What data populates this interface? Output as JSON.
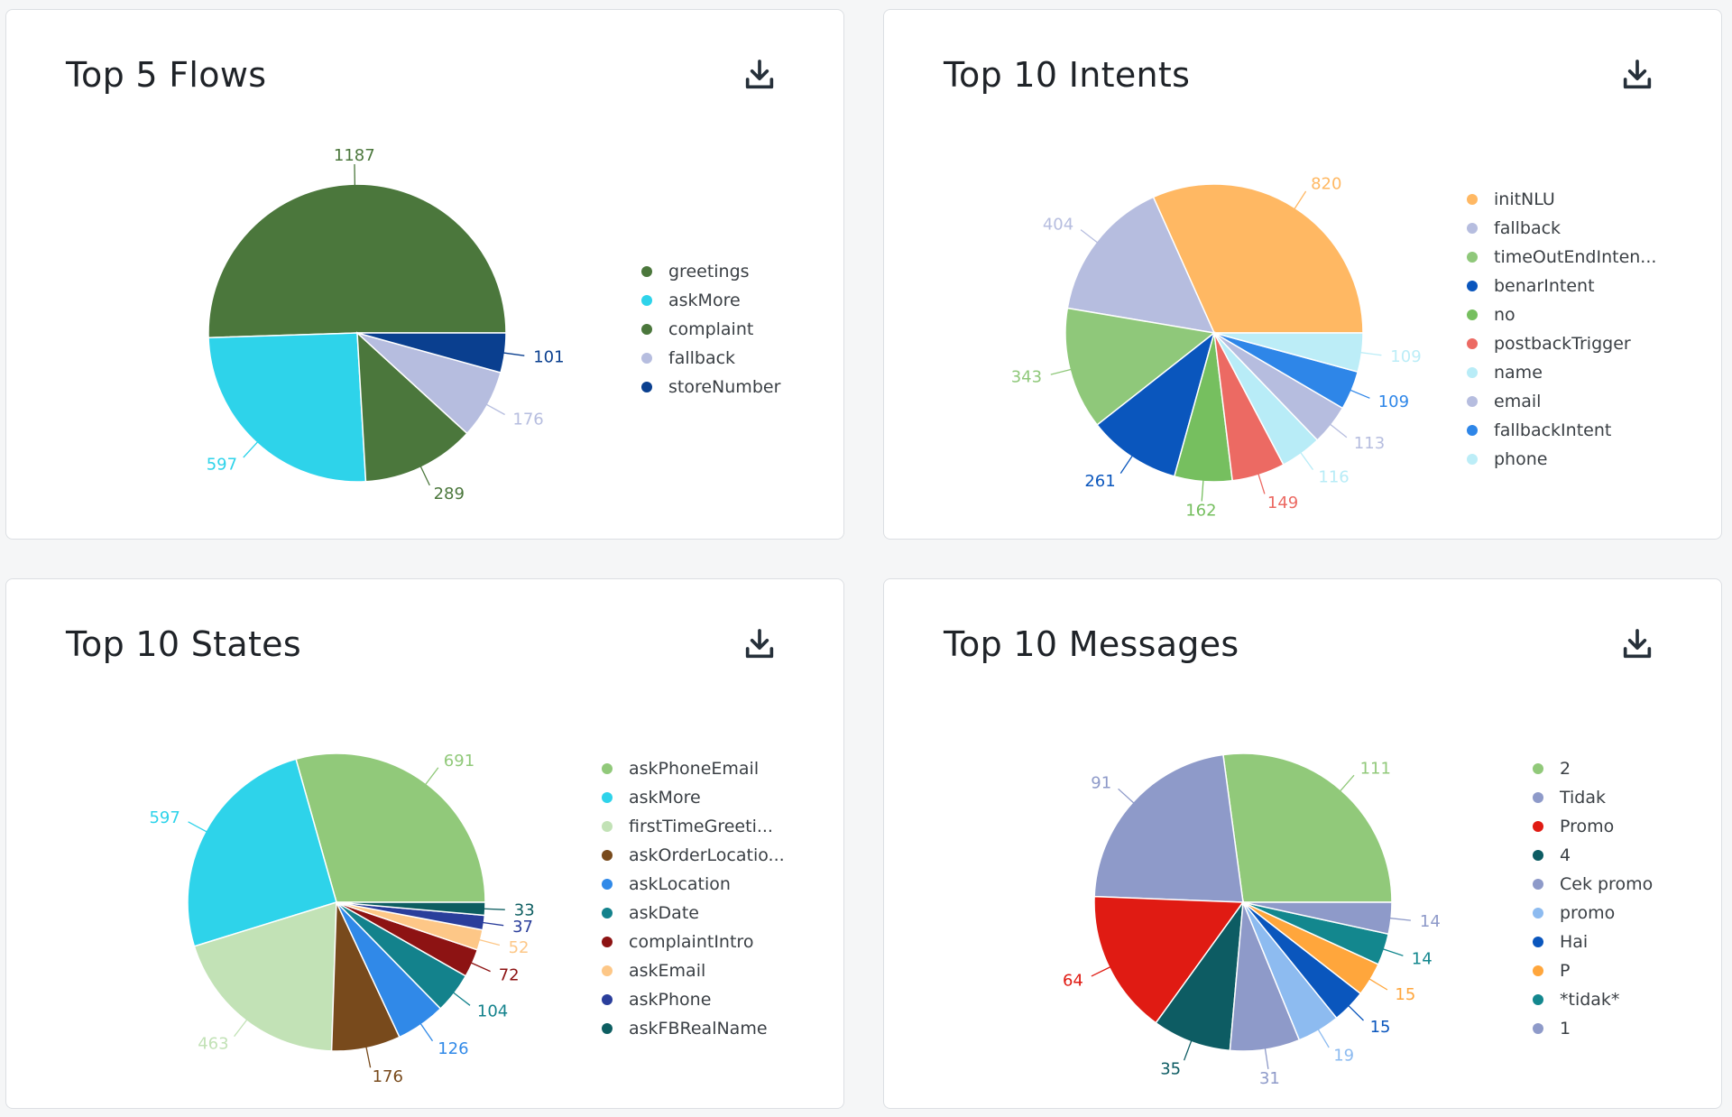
{
  "download_icon": "download-icon",
  "charts": [
    {
      "title": "Top 5 Flows",
      "chart_data": {
        "type": "pie",
        "labels": [
          "greetings",
          "askMore",
          "complaint",
          "fallback",
          "storeNumber"
        ],
        "values": [
          1187,
          597,
          289,
          176,
          101
        ],
        "colors": [
          "#4b773c",
          "#2ed3ea",
          "#4b773c",
          "#b6bddf",
          "#0a3f8f"
        ],
        "legend": "right"
      }
    },
    {
      "title": "Top 10 Intents",
      "chart_data": {
        "type": "pie",
        "labels": [
          "initNLU",
          "fallback",
          "timeOutEndInten...",
          "benarIntent",
          "no",
          "postbackTrigger",
          "name",
          "email",
          "fallbackIntent",
          "phone"
        ],
        "values": [
          820,
          404,
          343,
          261,
          162,
          149,
          116,
          113,
          109,
          109
        ],
        "colors": [
          "#ffb863",
          "#b6bddf",
          "#8fc87a",
          "#0a56bd",
          "#76bf5f",
          "#ec6a63",
          "#b8ecf7",
          "#b6bddf",
          "#2e86e8",
          "#bcedf7"
        ],
        "legend": "right"
      }
    },
    {
      "title": "Top 10 States",
      "chart_data": {
        "type": "pie",
        "labels": [
          "askPhoneEmail",
          "askMore",
          "firstTimeGreeti...",
          "askOrderLocatio...",
          "askLocation",
          "askDate",
          "complaintIntro",
          "askEmail",
          "askPhone",
          "askFBRealName"
        ],
        "values": [
          691,
          597,
          463,
          176,
          126,
          104,
          72,
          52,
          37,
          33
        ],
        "colors": [
          "#91c97a",
          "#2ed3ea",
          "#c2e2b6",
          "#784a1c",
          "#3089e8",
          "#13828c",
          "#8d1313",
          "#fdc787",
          "#2a3e9b",
          "#0d5e61"
        ],
        "legend": "right"
      }
    },
    {
      "title": "Top 10 Messages",
      "chart_data": {
        "type": "pie",
        "labels": [
          "2",
          "Tidak",
          "Promo",
          "4",
          "Cek promo",
          "promo",
          "Hai",
          "P",
          "*tidak*",
          "1"
        ],
        "values": [
          111,
          91,
          64,
          35,
          31,
          19,
          15,
          15,
          14,
          14
        ],
        "colors": [
          "#91c97a",
          "#8e9ac9",
          "#e01b13",
          "#0d5c63",
          "#8e9ac9",
          "#8dbbf0",
          "#0a56bd",
          "#ffa63c",
          "#13878e",
          "#8e9ac9"
        ],
        "legend": "right"
      }
    }
  ]
}
